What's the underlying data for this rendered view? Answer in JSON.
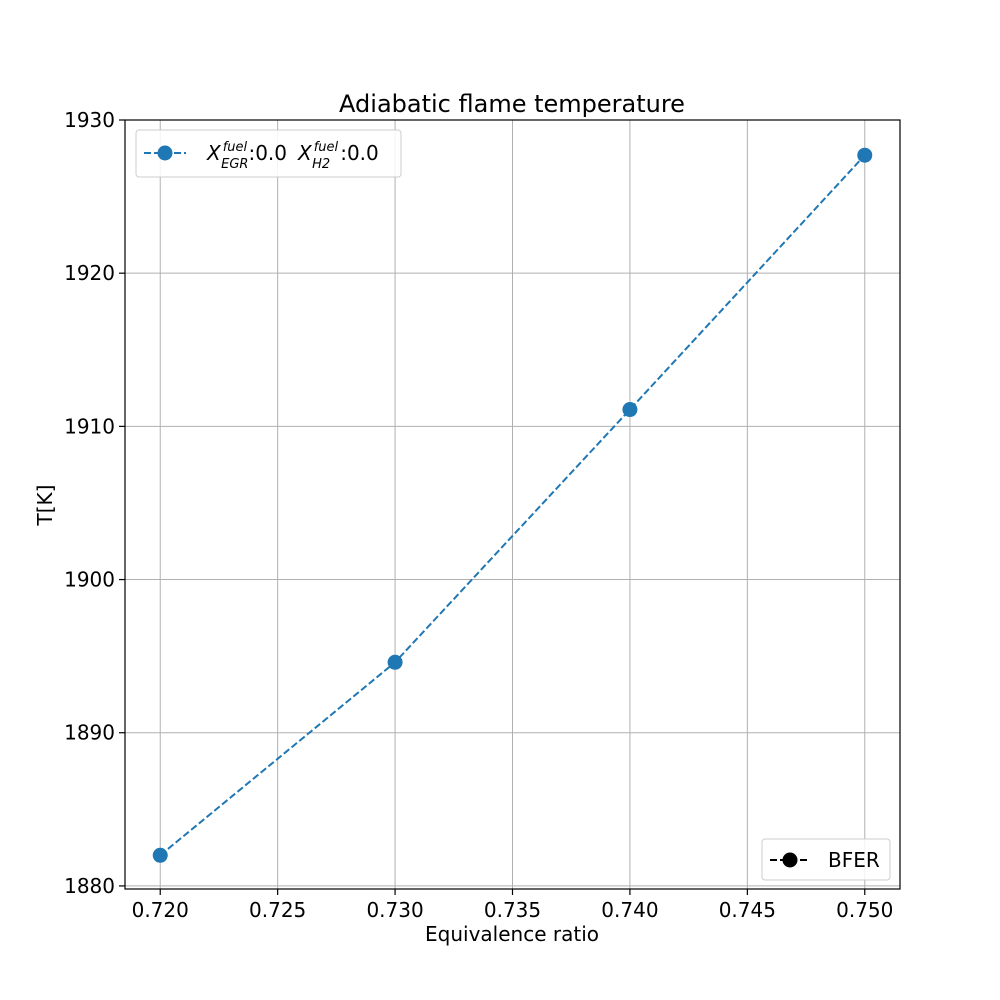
{
  "chart_data": {
    "type": "line",
    "title": "Adiabatic flame temperature",
    "xlabel": "Equivalence ratio",
    "ylabel": "T[K]",
    "xlim": [
      0.7185,
      0.7515
    ],
    "ylim": [
      1879.8,
      1930
    ],
    "xticks": [
      0.72,
      0.725,
      0.73,
      0.735,
      0.74,
      0.745,
      0.75
    ],
    "xtick_labels": [
      "0.720",
      "0.725",
      "0.730",
      "0.735",
      "0.740",
      "0.745",
      "0.750"
    ],
    "yticks": [
      1880,
      1890,
      1900,
      1910,
      1920,
      1930
    ],
    "ytick_labels": [
      "1880",
      "1890",
      "1900",
      "1910",
      "1920",
      "1930"
    ],
    "grid": true,
    "series": [
      {
        "x": [
          0.72,
          0.73,
          0.74,
          0.75
        ],
        "y": [
          1882.0,
          1894.6,
          1911.1,
          1927.7
        ],
        "color": "#1f77b4",
        "linestyle": "dashed",
        "marker": "circle"
      }
    ],
    "legends": [
      {
        "placement": "upper-left",
        "marker_color": "#1f77b4",
        "line_style": "dashed",
        "entry": {
          "part1_main": "X",
          "part1_sup": "fuel",
          "part1_sub": "EGR",
          "part1_value": ":0.0",
          "part2_main": "X",
          "part2_sup": "fuel",
          "part2_sub": "H2",
          "part2_value": ":0.0"
        }
      },
      {
        "placement": "lower-right",
        "marker_color": "#000000",
        "line_style": "dashed",
        "label": "BFER"
      }
    ]
  }
}
